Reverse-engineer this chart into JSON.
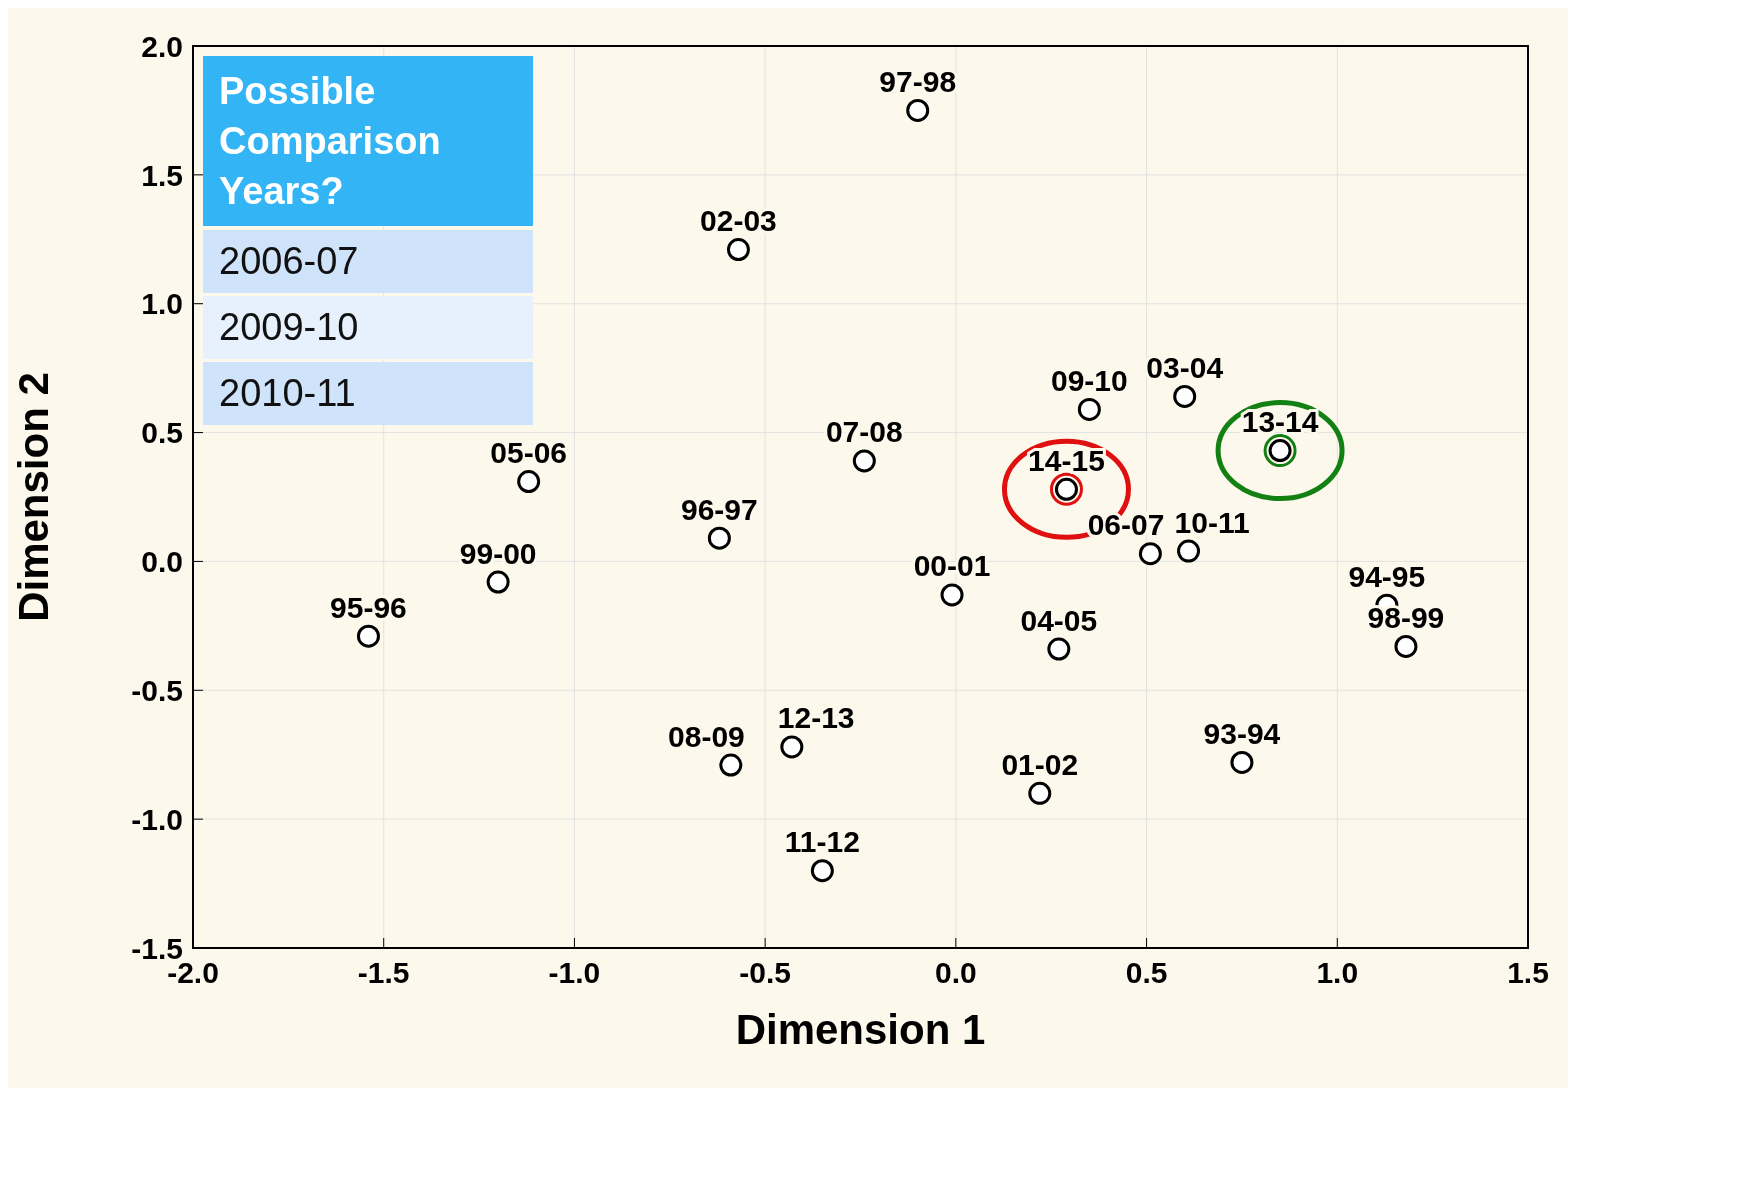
{
  "chart_data": {
    "type": "scatter",
    "xlabel": "Dimension 1",
    "ylabel": "Dimension 2",
    "xlim": [
      -2.0,
      1.5
    ],
    "xticks": [
      {
        "value": -2,
        "label": "-2.0"
      },
      {
        "value": -1.5,
        "label": "-1.5"
      },
      {
        "value": -1,
        "label": "-1.0"
      },
      {
        "value": -0.5,
        "label": "-0.5"
      },
      {
        "value": 0,
        "label": "0.0"
      },
      {
        "value": 0.5,
        "label": "0.5"
      },
      {
        "value": 1,
        "label": "1.0"
      },
      {
        "value": 1.5,
        "label": "1.5"
      }
    ],
    "ylim": [
      -1.5,
      2.0
    ],
    "yticks": [
      {
        "value": -1.5,
        "label": "-1.5"
      },
      {
        "value": -1,
        "label": "-1.0"
      },
      {
        "value": -0.5,
        "label": "-0.5"
      },
      {
        "value": 0,
        "label": "0.0"
      },
      {
        "value": 0.5,
        "label": "0.5"
      },
      {
        "value": 1,
        "label": "1.0"
      },
      {
        "value": 1.5,
        "label": "1.5"
      },
      {
        "value": 2,
        "label": "2.0"
      }
    ],
    "grid": true,
    "legend": false,
    "marker": "circle",
    "series": [
      {
        "color": "#000000",
        "x": [
          -0.1,
          -0.57,
          0.35,
          0.6,
          0.85,
          0.29,
          -0.24,
          -1.12,
          -0.62,
          -1.2,
          -1.54,
          -0.01,
          0.51,
          0.61,
          0.27,
          1.13,
          1.18,
          -0.43,
          -0.59,
          0.22,
          0.75,
          -0.35
        ],
        "values": [
          1.75,
          1.21,
          0.59,
          0.64,
          0.43,
          0.28,
          0.39,
          0.31,
          0.09,
          -0.08,
          -0.29,
          -0.13,
          0.03,
          0.04,
          -0.34,
          -0.17,
          -0.33,
          -0.72,
          -0.79,
          -0.9,
          -0.78,
          -1.2
        ],
        "value_labels": [
          "97-98",
          "02-03",
          "09-10",
          "03-04",
          "13-14",
          "14-15",
          "07-08",
          "05-06",
          "96-97",
          "99-00",
          "95-96",
          "00-01",
          "06-07",
          "10-11",
          "04-05",
          "94-95",
          "98-99",
          "12-13",
          "08-09",
          "01-02",
          "93-94",
          "11-12"
        ]
      },
      {
        "color": "#e01010",
        "x": [
          0.29
        ],
        "values": [
          0.28
        ]
      },
      {
        "color": "#138013",
        "x": [
          0.85
        ],
        "values": [
          0.43
        ]
      }
    ],
    "annotations": [
      "Possible Comparison Years?",
      "2006-07",
      "2009-10",
      "2010-11"
    ]
  }
}
